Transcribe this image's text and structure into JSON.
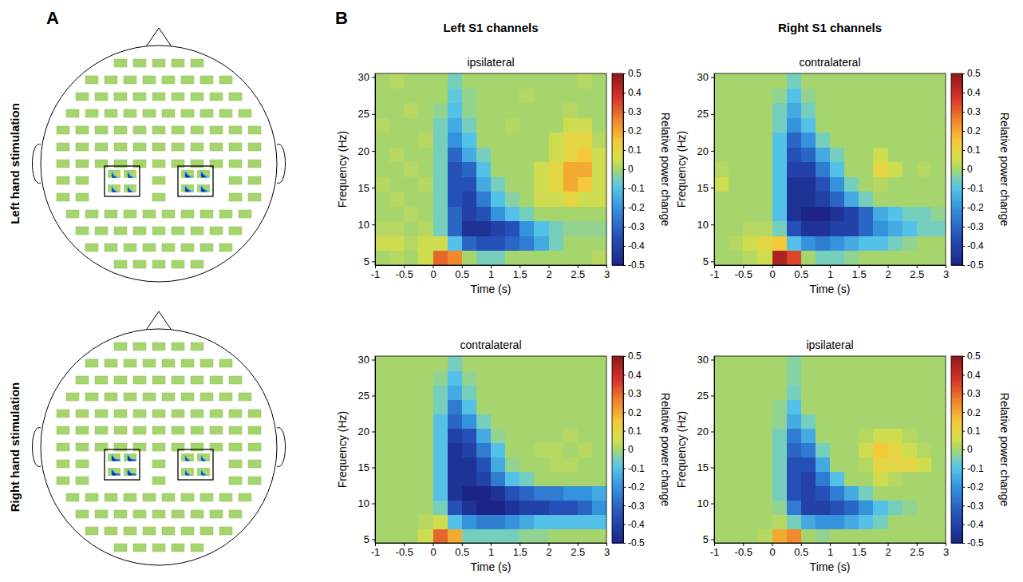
{
  "panel_labels": [
    "A",
    "B"
  ],
  "row_labels": [
    "Left hand stimulation",
    "Right hand stimulation"
  ],
  "column_labels": [
    "Left S1 channels",
    "Right S1 channels"
  ],
  "chart_data": [
    {
      "type": "heatmap",
      "title": "ipsilateral",
      "x_label": "Time (s)",
      "y_label": "Frequency (Hz)",
      "xlim": [
        -1,
        3
      ],
      "xticks": [
        -1,
        -0.5,
        0,
        0.5,
        1,
        1.5,
        2,
        2.5,
        3
      ],
      "ylim": [
        4.5,
        30.5
      ],
      "yticks": [
        5,
        10,
        15,
        20,
        25,
        30
      ],
      "x_bins": [
        -1,
        -0.75,
        -0.5,
        -0.25,
        0,
        0.25,
        0.5,
        0.75,
        1,
        1.25,
        1.5,
        1.75,
        2,
        2.25,
        2.5,
        2.75,
        3
      ],
      "y_bins": [
        4.5,
        6.5,
        8.5,
        10.5,
        12.5,
        14.5,
        16.5,
        18.5,
        20.5,
        22.5,
        24.5,
        26.5,
        28.5,
        30.5
      ],
      "z": [
        [
          0,
          0.02,
          0,
          0.05,
          0.3,
          0.25,
          0,
          -0.05,
          -0.05,
          0,
          0,
          0,
          0,
          0,
          0,
          0.02
        ],
        [
          0.05,
          0.05,
          0.02,
          0.05,
          0.05,
          -0.1,
          -0.3,
          -0.35,
          -0.35,
          -0.3,
          -0.25,
          -0.15,
          -0.05,
          0,
          0,
          0
        ],
        [
          0.02,
          0.02,
          0,
          0.02,
          -0.05,
          -0.3,
          -0.45,
          -0.45,
          -0.4,
          -0.35,
          -0.2,
          -0.1,
          -0.05,
          -0.02,
          -0.02,
          -0.02
        ],
        [
          0,
          0,
          0.02,
          0,
          -0.05,
          -0.3,
          -0.4,
          -0.35,
          -0.2,
          -0.1,
          -0.05,
          0,
          0,
          0,
          0,
          0
        ],
        [
          0,
          0.02,
          0,
          0,
          -0.05,
          -0.35,
          -0.4,
          -0.25,
          -0.1,
          -0.03,
          0,
          0.05,
          0.05,
          0.1,
          0.05,
          0.05
        ],
        [
          0.02,
          0,
          0,
          0.02,
          -0.05,
          -0.35,
          -0.35,
          -0.15,
          -0.05,
          0,
          0,
          0.05,
          0.1,
          0.2,
          0.15,
          0.05
        ],
        [
          0,
          0,
          0.02,
          0,
          -0.05,
          -0.35,
          -0.3,
          -0.1,
          0,
          0,
          0,
          0.05,
          0.1,
          0.2,
          0.2,
          0.05
        ],
        [
          0,
          0.02,
          0,
          0,
          -0.05,
          -0.3,
          -0.15,
          -0.05,
          0,
          0,
          0,
          0,
          0.05,
          0.1,
          0.15,
          0.05
        ],
        [
          0,
          0,
          0,
          0.02,
          -0.05,
          -0.2,
          -0.1,
          0,
          0,
          0,
          0,
          0,
          0.05,
          0.1,
          0.1,
          0.02
        ],
        [
          0.02,
          0,
          0,
          0,
          -0.05,
          -0.15,
          -0.05,
          0,
          0,
          0.02,
          0,
          0,
          0,
          0.05,
          0.05,
          0
        ],
        [
          0,
          0,
          0.02,
          0,
          -0.02,
          -0.1,
          -0.02,
          0,
          0,
          0,
          0,
          0,
          0,
          0.02,
          0,
          0
        ],
        [
          0,
          0,
          0,
          0,
          0,
          -0.08,
          -0.02,
          0,
          0,
          0,
          0.02,
          0,
          0,
          0,
          0,
          0
        ],
        [
          0,
          0.02,
          0,
          0,
          0,
          -0.05,
          0,
          0,
          0,
          0,
          0,
          0,
          0,
          0,
          0.02,
          0
        ]
      ],
      "colorbar": {
        "label": "Relative power change",
        "range": [
          -0.5,
          0.5
        ],
        "ticks": [
          -0.5,
          -0.4,
          -0.3,
          -0.2,
          -0.1,
          0,
          0.1,
          0.2,
          0.3,
          0.4,
          0.5
        ]
      }
    },
    {
      "type": "heatmap",
      "title": "contralateral",
      "x_label": "Time (s)",
      "y_label": "Frequency (Hz)",
      "xlim": [
        -1,
        3
      ],
      "xticks": [
        -1,
        -0.5,
        0,
        0.5,
        1,
        1.5,
        2,
        2.5,
        3
      ],
      "ylim": [
        4.5,
        30.5
      ],
      "yticks": [
        5,
        10,
        15,
        20,
        25,
        30
      ],
      "x_bins": [
        -1,
        -0.75,
        -0.5,
        -0.25,
        0,
        0.25,
        0.5,
        0.75,
        1,
        1.25,
        1.5,
        1.75,
        2,
        2.25,
        2.5,
        2.75,
        3
      ],
      "y_bins": [
        4.5,
        6.5,
        8.5,
        10.5,
        12.5,
        14.5,
        16.5,
        18.5,
        20.5,
        22.5,
        24.5,
        26.5,
        28.5,
        30.5
      ],
      "z": [
        [
          0,
          0,
          0.02,
          0.05,
          0.45,
          0.35,
          0,
          -0.05,
          -0.05,
          -0.02,
          0,
          0,
          0,
          0,
          0,
          0
        ],
        [
          0,
          0.02,
          0.05,
          0.1,
          0.15,
          -0.1,
          -0.2,
          -0.25,
          -0.2,
          -0.15,
          -0.1,
          -0.1,
          -0.05,
          -0.02,
          0,
          0
        ],
        [
          0,
          0,
          0.02,
          0.02,
          -0.05,
          -0.35,
          -0.45,
          -0.45,
          -0.4,
          -0.4,
          -0.3,
          -0.2,
          -0.15,
          -0.1,
          -0.05,
          -0.05
        ],
        [
          0,
          0,
          0,
          0,
          -0.1,
          -0.45,
          -0.5,
          -0.5,
          -0.45,
          -0.4,
          -0.3,
          -0.15,
          -0.1,
          -0.05,
          -0.05,
          -0.02
        ],
        [
          0,
          0,
          0,
          0,
          -0.1,
          -0.45,
          -0.45,
          -0.4,
          -0.3,
          -0.15,
          -0.05,
          0,
          0,
          0,
          0,
          0
        ],
        [
          0.05,
          0,
          0,
          0,
          -0.1,
          -0.45,
          -0.45,
          -0.35,
          -0.2,
          -0.05,
          0,
          0.02,
          0,
          0,
          0,
          0
        ],
        [
          0.02,
          0,
          0,
          0,
          -0.1,
          -0.4,
          -0.4,
          -0.25,
          -0.1,
          0,
          0,
          0.1,
          0.05,
          0,
          0.02,
          0
        ],
        [
          0,
          0,
          0,
          0,
          -0.1,
          -0.35,
          -0.3,
          -0.15,
          -0.05,
          0,
          0,
          0.05,
          0,
          0,
          0,
          0
        ],
        [
          0,
          0,
          0,
          0,
          -0.1,
          -0.3,
          -0.2,
          -0.05,
          0,
          0,
          0,
          0,
          0,
          0,
          0,
          0
        ],
        [
          0,
          0,
          0,
          0,
          -0.05,
          -0.2,
          -0.1,
          0,
          0,
          0,
          0,
          0,
          0,
          0,
          0,
          0
        ],
        [
          0,
          0,
          0,
          0,
          -0.05,
          -0.15,
          -0.05,
          0,
          0,
          0,
          0,
          0,
          0,
          0,
          0,
          0
        ],
        [
          0,
          0,
          0,
          0,
          -0.02,
          -0.1,
          -0.02,
          0,
          0,
          0,
          0,
          0,
          0,
          0,
          0,
          0
        ],
        [
          0,
          0,
          0,
          0,
          0,
          -0.05,
          0,
          0,
          0,
          0,
          0,
          0,
          0,
          0,
          0,
          0
        ]
      ],
      "colorbar": {
        "label": "Relative power change",
        "range": [
          -0.5,
          0.5
        ],
        "ticks": [
          -0.5,
          -0.4,
          -0.3,
          -0.2,
          -0.1,
          0,
          0.1,
          0.2,
          0.3,
          0.4,
          0.5
        ]
      }
    },
    {
      "type": "heatmap",
      "title": "contralateral",
      "x_label": "Time (s)",
      "y_label": "Frequency (Hz)",
      "xlim": [
        -1,
        3
      ],
      "xticks": [
        -1,
        -0.5,
        0,
        0.5,
        1,
        1.5,
        2,
        2.5,
        3
      ],
      "ylim": [
        4.5,
        30.5
      ],
      "yticks": [
        5,
        10,
        15,
        20,
        25,
        30
      ],
      "x_bins": [
        -1,
        -0.75,
        -0.5,
        -0.25,
        0,
        0.25,
        0.5,
        0.75,
        1,
        1.25,
        1.5,
        1.75,
        2,
        2.25,
        2.5,
        2.75,
        3
      ],
      "y_bins": [
        4.5,
        6.5,
        8.5,
        10.5,
        12.5,
        14.5,
        16.5,
        18.5,
        20.5,
        22.5,
        24.5,
        26.5,
        28.5,
        30.5
      ],
      "z": [
        [
          0,
          0,
          0,
          0.05,
          0.3,
          0.2,
          -0.05,
          -0.05,
          -0.05,
          -0.05,
          -0.02,
          -0.02,
          0,
          0,
          0,
          0
        ],
        [
          0,
          0,
          0,
          0.02,
          0.05,
          -0.1,
          -0.2,
          -0.25,
          -0.25,
          -0.2,
          -0.15,
          -0.1,
          -0.1,
          -0.1,
          -0.1,
          -0.1
        ],
        [
          0,
          0,
          0,
          0,
          -0.05,
          -0.35,
          -0.45,
          -0.5,
          -0.5,
          -0.45,
          -0.4,
          -0.4,
          -0.35,
          -0.35,
          -0.3,
          -0.2
        ],
        [
          0,
          0,
          0,
          0,
          -0.1,
          -0.45,
          -0.5,
          -0.5,
          -0.45,
          -0.35,
          -0.3,
          -0.25,
          -0.25,
          -0.2,
          -0.2,
          -0.15
        ],
        [
          0,
          0,
          0,
          0,
          -0.1,
          -0.45,
          -0.45,
          -0.4,
          -0.25,
          -0.1,
          -0.05,
          0,
          0,
          0,
          0,
          0
        ],
        [
          0,
          0,
          0,
          0,
          -0.1,
          -0.45,
          -0.45,
          -0.35,
          -0.15,
          -0.02,
          0,
          0,
          0.02,
          0.02,
          0,
          0
        ],
        [
          0,
          0,
          0,
          0,
          -0.1,
          -0.45,
          -0.4,
          -0.25,
          -0.1,
          0,
          0,
          0.02,
          0.02,
          0,
          0.02,
          0
        ],
        [
          0,
          0,
          0,
          0,
          -0.1,
          -0.4,
          -0.35,
          -0.15,
          -0.02,
          0,
          0,
          0,
          0,
          0.02,
          0,
          0
        ],
        [
          0,
          0,
          0,
          0,
          -0.1,
          -0.3,
          -0.2,
          -0.05,
          0,
          0,
          0,
          0,
          0,
          0,
          0,
          0
        ],
        [
          0,
          0,
          0,
          0,
          -0.05,
          -0.25,
          -0.1,
          0,
          0,
          0,
          0,
          0,
          0,
          0,
          0,
          0
        ],
        [
          0,
          0,
          0,
          0,
          -0.05,
          -0.15,
          -0.05,
          0,
          0,
          0,
          0,
          0,
          0,
          0,
          0,
          0
        ],
        [
          0,
          0,
          0,
          0,
          -0.02,
          -0.1,
          -0.02,
          0,
          0,
          0,
          0,
          0,
          0,
          0,
          0,
          0
        ],
        [
          0,
          0,
          0,
          0,
          0,
          -0.05,
          0,
          0,
          0,
          0,
          0,
          0,
          0,
          0,
          0,
          0
        ]
      ],
      "colorbar": {
        "label": "Relative power change",
        "range": [
          -0.5,
          0.5
        ],
        "ticks": [
          -0.5,
          -0.4,
          -0.3,
          -0.2,
          -0.1,
          0,
          0.1,
          0.2,
          0.3,
          0.4,
          0.5
        ]
      }
    },
    {
      "type": "heatmap",
      "title": "ipsilateral",
      "x_label": "Time (s)",
      "y_label": "Frequency (Hz)",
      "xlim": [
        -1,
        3
      ],
      "xticks": [
        -1,
        -0.5,
        0,
        0.5,
        1,
        1.5,
        2,
        2.5,
        3
      ],
      "ylim": [
        4.5,
        30.5
      ],
      "yticks": [
        5,
        10,
        15,
        20,
        25,
        30
      ],
      "x_bins": [
        -1,
        -0.75,
        -0.5,
        -0.25,
        0,
        0.25,
        0.5,
        0.75,
        1,
        1.25,
        1.5,
        1.75,
        2,
        2.25,
        2.5,
        2.75,
        3
      ],
      "y_bins": [
        4.5,
        6.5,
        8.5,
        10.5,
        12.5,
        14.5,
        16.5,
        18.5,
        20.5,
        22.5,
        24.5,
        26.5,
        28.5,
        30.5
      ],
      "z": [
        [
          0,
          0,
          0,
          0.02,
          0.2,
          0.25,
          0,
          -0.02,
          0,
          0,
          0,
          0,
          0,
          0,
          0,
          0
        ],
        [
          0,
          0,
          0,
          0,
          0.02,
          -0.05,
          -0.15,
          -0.2,
          -0.2,
          -0.15,
          -0.1,
          -0.05,
          0,
          0,
          0,
          0
        ],
        [
          0,
          0,
          0,
          0,
          -0.02,
          -0.25,
          -0.4,
          -0.4,
          -0.35,
          -0.3,
          -0.2,
          -0.1,
          -0.05,
          -0.02,
          0,
          0
        ],
        [
          0,
          0,
          0,
          0,
          -0.05,
          -0.35,
          -0.4,
          -0.35,
          -0.25,
          -0.15,
          -0.05,
          0,
          0,
          0,
          0,
          0
        ],
        [
          0,
          0,
          0,
          0,
          -0.05,
          -0.35,
          -0.4,
          -0.25,
          -0.1,
          0,
          0,
          0.05,
          0.02,
          0,
          0,
          0
        ],
        [
          0,
          0,
          0,
          0,
          -0.05,
          -0.35,
          -0.35,
          -0.15,
          0,
          0,
          0.02,
          0.1,
          0.1,
          0.1,
          0.05,
          0
        ],
        [
          0,
          0,
          0,
          0,
          -0.05,
          -0.3,
          -0.25,
          -0.05,
          0,
          0,
          0.05,
          0.15,
          0.1,
          0.05,
          0.02,
          0
        ],
        [
          0,
          0,
          0,
          0,
          -0.05,
          -0.25,
          -0.15,
          0,
          0,
          0,
          0.02,
          0.05,
          0.05,
          0.02,
          0,
          0
        ],
        [
          0,
          0,
          0,
          0,
          -0.02,
          -0.15,
          -0.05,
          0,
          0,
          0,
          0,
          0,
          0,
          0,
          0,
          0
        ],
        [
          0,
          0,
          0,
          0,
          -0.02,
          -0.1,
          0,
          0,
          0,
          0,
          0,
          0,
          0,
          0,
          0,
          0
        ],
        [
          0,
          0,
          0,
          0,
          0,
          -0.05,
          0,
          0,
          0,
          0,
          0,
          0,
          0,
          0,
          0,
          0
        ],
        [
          0,
          0,
          0,
          0,
          0,
          -0.03,
          0,
          0,
          0,
          0,
          0,
          0,
          0,
          0,
          0,
          0
        ],
        [
          0,
          0,
          0,
          0,
          0,
          -0.03,
          0,
          0,
          0,
          0,
          0,
          0,
          0,
          0,
          0,
          0
        ]
      ],
      "colorbar": {
        "label": "Relative power change",
        "range": [
          -0.5,
          0.5
        ],
        "ticks": [
          -0.5,
          -0.4,
          -0.3,
          -0.2,
          -0.1,
          0,
          0.1,
          0.2,
          0.3,
          0.4,
          0.5
        ]
      }
    }
  ]
}
